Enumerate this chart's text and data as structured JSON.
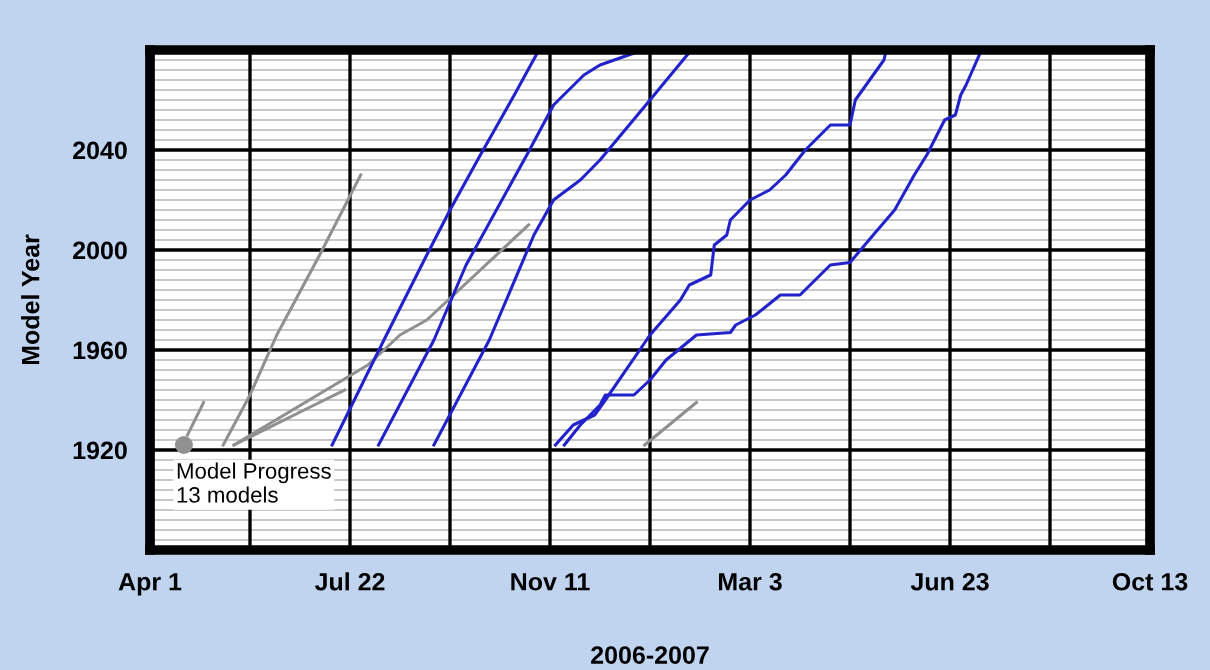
{
  "chart_data": {
    "type": "line",
    "xlabel": "2006-2007",
    "ylabel": "Model Year",
    "annotations": [
      "Model Progress\n13 models"
    ],
    "xlim": [
      "2006-04-01",
      "2007-10-13"
    ],
    "xticks": [
      {
        "value": "2006-04-01",
        "label": "Apr 1"
      },
      {
        "value": "2006-05-27",
        "label": null
      },
      {
        "value": "2006-07-22",
        "label": "Jul 22"
      },
      {
        "value": "2006-09-16",
        "label": null
      },
      {
        "value": "2006-11-11",
        "label": "Nov 11"
      },
      {
        "value": "2007-01-06",
        "label": null
      },
      {
        "value": "2007-03-03",
        "label": "Mar 3"
      },
      {
        "value": "2007-04-28",
        "label": null
      },
      {
        "value": "2007-06-23",
        "label": "Jun 23"
      },
      {
        "value": "2007-08-18",
        "label": null
      },
      {
        "value": "2007-10-13",
        "label": "Oct 13"
      }
    ],
    "ylim": [
      1880,
      2080
    ],
    "yticks": [
      1920,
      1960,
      2000,
      2040
    ],
    "grid": true,
    "series": [
      {
        "type": "scatter",
        "marker": "circle",
        "color": "#909090",
        "x": [
          "2006-04-20"
        ],
        "values": [
          1922
        ]
      },
      {
        "color": "#909090",
        "x": [
          "2006-04-22",
          "2006-05-01"
        ],
        "values": [
          1926,
          1939
        ]
      },
      {
        "color": "#909090",
        "x": [
          "2006-05-12",
          "2006-05-27",
          "2006-06-11",
          "2006-07-05",
          "2006-07-28"
        ],
        "values": [
          1922,
          1942,
          1966,
          1998,
          2030
        ]
      },
      {
        "color": "#909090",
        "x": [
          "2006-05-18",
          "2006-07-02",
          "2006-07-19"
        ],
        "values": [
          1922,
          1938,
          1944
        ]
      },
      {
        "color": "#909090",
        "x": [
          "2006-05-18",
          "2006-08-01",
          "2006-08-19",
          "2006-09-03",
          "2006-09-18",
          "2006-10-30"
        ],
        "values": [
          1922,
          1954,
          1966,
          1972,
          1982,
          2010
        ]
      },
      {
        "color": "#909090",
        "x": [
          "2007-01-03",
          "2007-02-01"
        ],
        "values": [
          1922,
          1939
        ]
      },
      {
        "color": "#2222cc",
        "x": [
          "2006-07-12",
          "2006-08-10",
          "2006-09-03",
          "2006-09-16",
          "2006-10-03",
          "2006-10-22",
          "2006-11-04"
        ],
        "values": [
          1922,
          1964,
          1998,
          2016,
          2038,
          2062,
          2079
        ]
      },
      {
        "color": "#2222cc",
        "x": [
          "2006-08-07",
          "2006-09-07",
          "2006-09-25",
          "2006-10-29",
          "2006-11-13",
          "2006-11-30",
          "2006-12-09",
          "2006-12-29"
        ],
        "values": [
          1922,
          1964,
          1994,
          2038,
          2058,
          2070,
          2074,
          2079
        ]
      },
      {
        "color": "#2222cc",
        "x": [
          "2006-09-07",
          "2006-10-08",
          "2006-11-02",
          "2006-11-13",
          "2006-11-28",
          "2006-12-09",
          "2007-01-06",
          "2007-01-28"
        ],
        "values": [
          1922,
          1964,
          2006,
          2020,
          2028,
          2036,
          2060,
          2079
        ]
      },
      {
        "color": "#2222cc",
        "x": [
          "2006-11-14",
          "2006-11-24",
          "2006-12-06",
          "2006-12-12",
          "2007-01-06",
          "2007-01-23",
          "2007-01-28",
          "2007-02-09",
          "2007-02-11",
          "2007-02-18",
          "2007-02-20",
          "2007-03-03",
          "2007-03-14",
          "2007-03-23",
          "2007-04-03",
          "2007-04-17",
          "2007-04-28",
          "2007-05-01",
          "2007-05-17",
          "2007-05-18"
        ],
        "values": [
          1922,
          1930,
          1934,
          1940,
          1966,
          1980,
          1986,
          1990,
          2002,
          2006,
          2012,
          2020,
          2024,
          2030,
          2040,
          2050,
          2050,
          2060,
          2076,
          2079
        ]
      },
      {
        "color": "#2222cc",
        "x": [
          "2006-11-19",
          "2006-11-28",
          "2006-12-09",
          "2006-12-12",
          "2006-12-28",
          "2007-01-06",
          "2007-01-15",
          "2007-02-01",
          "2007-02-20",
          "2007-02-23",
          "2007-03-06",
          "2007-03-20",
          "2007-03-31",
          "2007-04-17",
          "2007-04-28",
          "2007-05-11",
          "2007-05-23",
          "2007-06-03",
          "2007-06-10",
          "2007-06-20",
          "2007-06-26",
          "2007-06-29",
          "2007-07-02",
          "2007-07-10"
        ],
        "values": [
          1922,
          1930,
          1938,
          1942,
          1942,
          1948,
          1956,
          1966,
          1967,
          1970,
          1974,
          1982,
          1982,
          1994,
          1995,
          2006,
          2016,
          2030,
          2038,
          2052,
          2054,
          2062,
          2066,
          2079
        ]
      }
    ]
  }
}
